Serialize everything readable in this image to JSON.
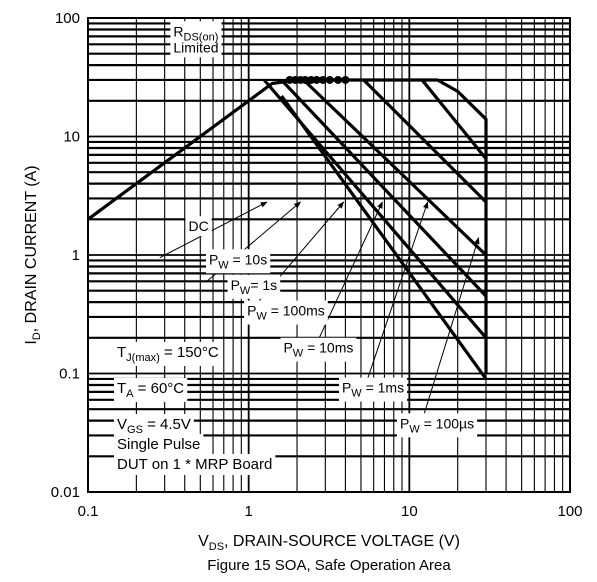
{
  "chart_data": {
    "type": "line",
    "title": "",
    "caption": "Figure 15 SOA, Safe Operation Area",
    "xlabel": {
      "main": "V",
      "sub": "DS",
      "rest": ", DRAIN-SOURCE VOLTAGE (V)"
    },
    "ylabel": {
      "main": "I",
      "sub": "D",
      "rest": ", DRAIN CURRENT (A)"
    },
    "x_scale": "log",
    "y_scale": "log",
    "xlim": [
      0.1,
      100
    ],
    "ylim": [
      0.01,
      100
    ],
    "x_ticks": [
      "0.1",
      "1",
      "10",
      "100"
    ],
    "y_ticks": [
      "0.01",
      "0.1",
      "1",
      "10",
      "100"
    ],
    "grid": true,
    "rds_limit_label": {
      "main": "R",
      "sub": "DS(on)",
      "line2": "Limited"
    },
    "series": [
      {
        "name": "DC",
        "points": [
          [
            0.1,
            2.0
          ],
          [
            1.4,
            28
          ],
          [
            2.0,
            30
          ],
          [
            5.0,
            30
          ],
          [
            15,
            30
          ],
          [
            20,
            24
          ],
          [
            30,
            14
          ],
          [
            30,
            0.1
          ]
        ]
      },
      {
        "name": "10s",
        "points": [
          [
            1.6,
            22
          ],
          [
            30,
            0.09
          ]
        ]
      },
      {
        "name": "1s",
        "points": [
          [
            1.25,
            30
          ],
          [
            30,
            0.2
          ]
        ]
      },
      {
        "name": "100ms",
        "points": [
          [
            1.6,
            30
          ],
          [
            30,
            0.45
          ]
        ]
      },
      {
        "name": "10ms",
        "points": [
          [
            2.2,
            30
          ],
          [
            30,
            1.0
          ]
        ]
      },
      {
        "name": "1ms",
        "points": [
          [
            5.2,
            30
          ],
          [
            30,
            2.8
          ]
        ]
      },
      {
        "name": "100µs",
        "points": [
          [
            12,
            30
          ],
          [
            30,
            6.5
          ]
        ]
      }
    ],
    "rds_limit_line": {
      "points": [
        [
          0.1,
          2.0
        ],
        [
          1.4,
          28
        ]
      ]
    },
    "dots": {
      "y": 30,
      "x": [
        1.8,
        1.95,
        2.1,
        2.25,
        2.45,
        2.65,
        2.9,
        3.2,
        3.6,
        4.0
      ]
    },
    "pulse_labels": [
      {
        "main": "P",
        "sub": "W",
        "value": " = 10s",
        "x": 0.55,
        "y": 0.92
      },
      {
        "main": "P",
        "sub": "W",
        "value": "= 1s",
        "x": 0.75,
        "y": 0.56
      },
      {
        "main": "P",
        "sub": "W",
        "value": " = 100ms",
        "x": 0.95,
        "y": 0.34
      },
      {
        "main": "P",
        "sub": "W",
        "value": " = 10ms",
        "x": 1.6,
        "y": 0.165
      },
      {
        "main": "P",
        "sub": "W",
        "value": " = 1ms",
        "x": 3.7,
        "y": 0.076
      },
      {
        "main": "P",
        "sub": "W",
        "value": " = 100µs",
        "x": 8.5,
        "y": 0.038
      }
    ],
    "dc_label": {
      "text": "DC",
      "x": 0.41,
      "y": 1.75
    },
    "arrows": [
      {
        "from": [
          0.28,
          0.95
        ],
        "to": [
          1.3,
          2.8
        ]
      },
      {
        "from": [
          0.55,
          0.6
        ],
        "to": [
          2.1,
          2.8
        ]
      },
      {
        "from": [
          1.05,
          0.35
        ],
        "to": [
          3.9,
          2.8
        ]
      },
      {
        "from": [
          2.6,
          0.17
        ],
        "to": [
          6.8,
          2.8
        ]
      },
      {
        "from": [
          5.3,
          0.078
        ],
        "to": [
          13,
          2.8
        ]
      },
      {
        "from": [
          12,
          0.04
        ],
        "to": [
          27,
          1.4
        ]
      }
    ],
    "conditions": [
      {
        "main": "T",
        "sub": "J(max)",
        "rest": " = 150°C"
      },
      {
        "main": "T",
        "sub": "A",
        "rest": " = 60°C"
      },
      {
        "main": "V",
        "sub": "GS",
        "rest": " = 4.5V"
      },
      {
        "main": "Single Pulse",
        "sub": "",
        "rest": ""
      },
      {
        "main": "DUT on 1 * MRP Board",
        "sub": "",
        "rest": ""
      }
    ]
  }
}
